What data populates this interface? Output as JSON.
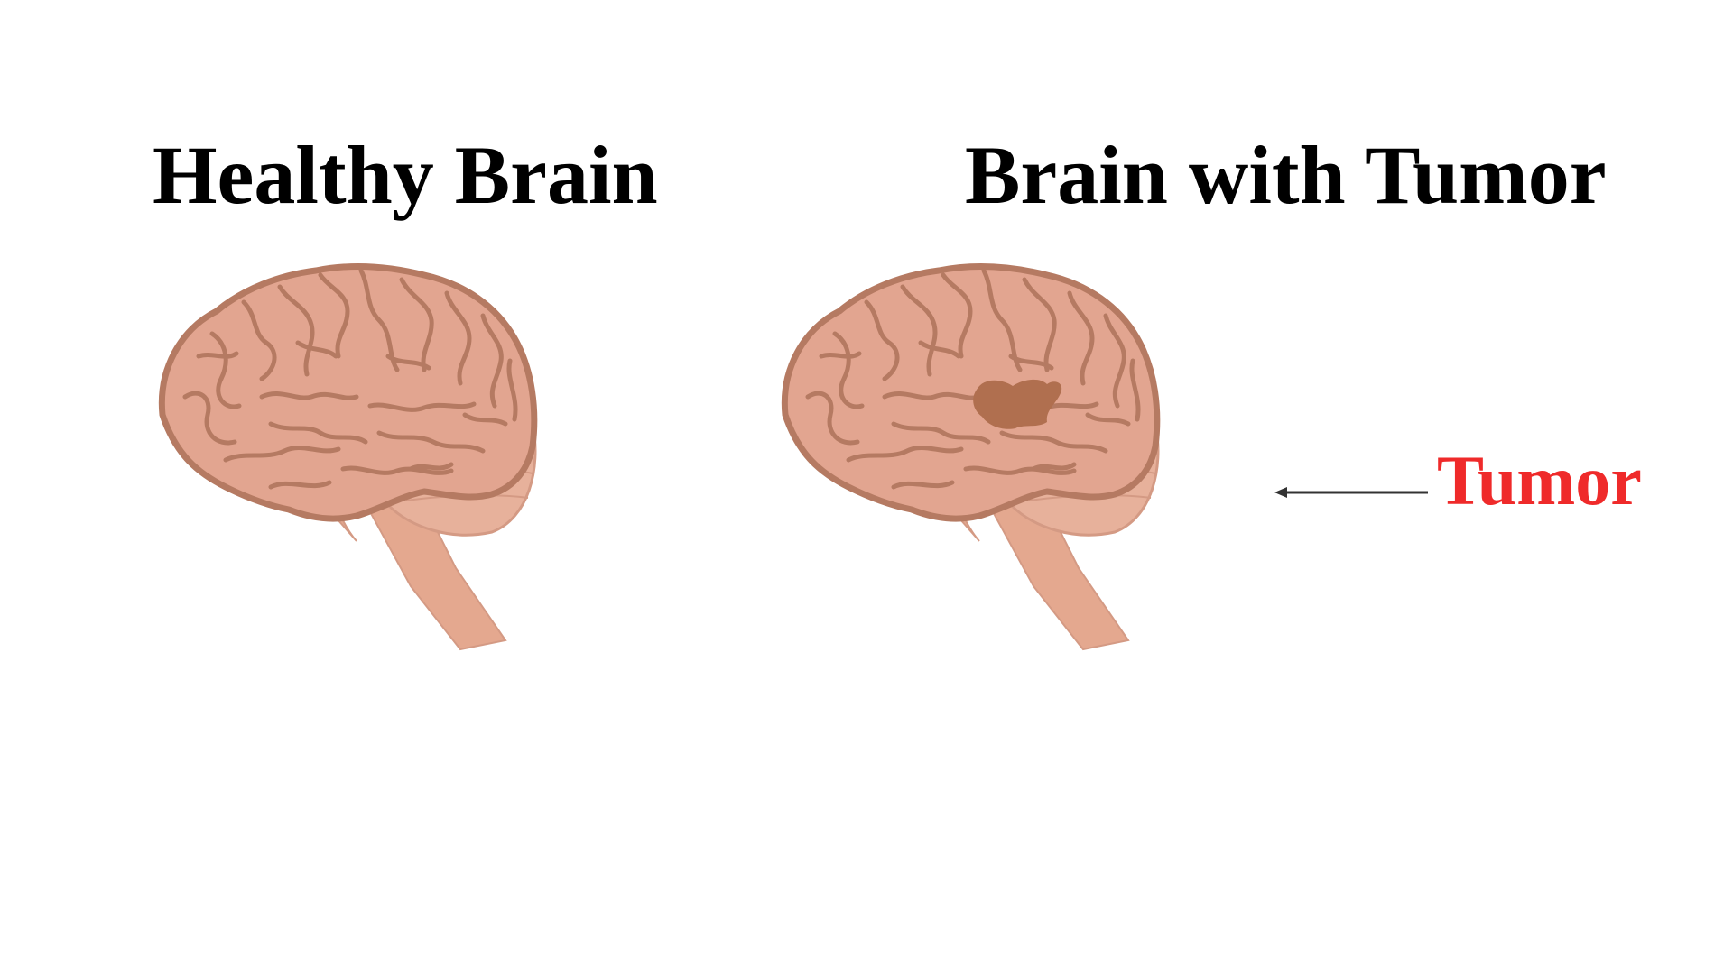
{
  "panels": {
    "healthy": {
      "title": "Healthy Brain"
    },
    "tumor": {
      "title": "Brain with Tumor"
    }
  },
  "annotation": {
    "label": "Tumor"
  },
  "colors": {
    "title_text": "#000000",
    "annotation_text": "#ef2a2a",
    "brain_fill": "#e2a590",
    "brain_outline": "#b57a62",
    "gyri_lines": "#b57a62",
    "cerebellum_fill": "#e7b19b",
    "cerebellum_lines": "#d49a84",
    "brainstem_fill": "#e4a88f",
    "tumor_fill": "#b06f4f",
    "arrow": "#333333"
  }
}
